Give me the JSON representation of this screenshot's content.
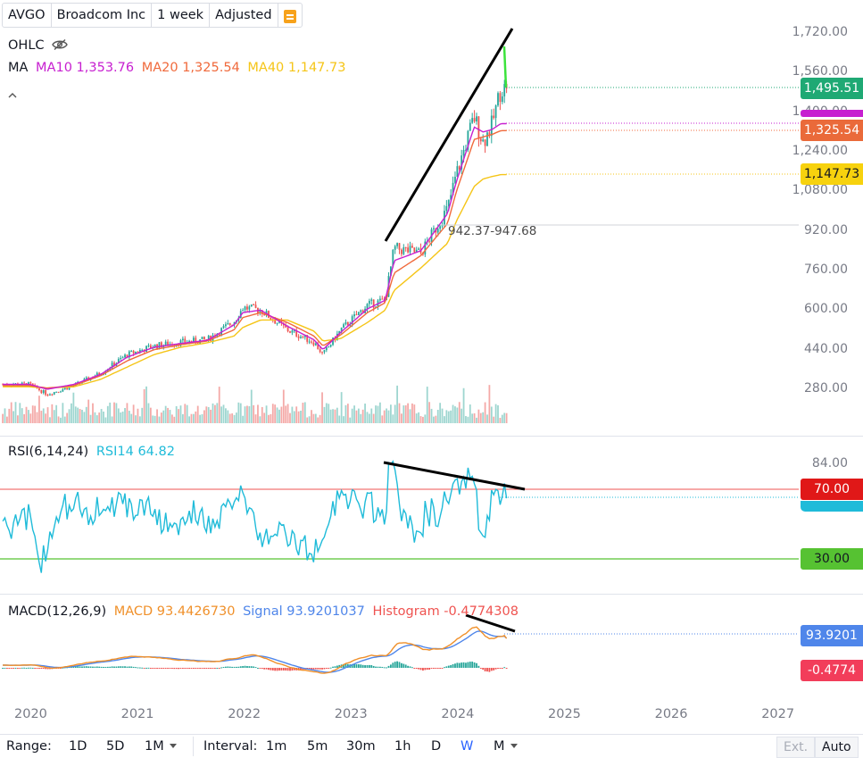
{
  "header": {
    "symbol": "AVGO",
    "name": "Broadcom Inc",
    "interval": "1 week",
    "adjustment": "Adjusted"
  },
  "legend": {
    "ohlc_label": "OHLC",
    "ma_label": "MA",
    "ma10": "MA10 1,353.76",
    "ma20": "MA20 1,325.54",
    "ma40": "MA40 1,147.73"
  },
  "rsi_legend": {
    "label": "RSI(6,14,24)",
    "value": "RSI14 64.82"
  },
  "macd_legend": {
    "label": "MACD(12,26,9)",
    "macd": "MACD 93.4426730",
    "signal": "Signal 93.9201037",
    "histogram": "Histogram -0.4774308"
  },
  "annotation": "942.37-947.68",
  "price_tags": {
    "last": "1,495.51",
    "ma20": "1,325.54",
    "ma40": "1,147.73",
    "rsi70": "70.00",
    "rsi30": "30.00",
    "signal": "93.9201",
    "histogram": "-0.4774"
  },
  "colors": {
    "up": "#26a69a",
    "down": "#ef5350",
    "ma10": "#c71fd0",
    "ma20": "#f06a3c",
    "ma40": "#f5c518",
    "rsi": "#1fbbd9",
    "macd": "#f0902a",
    "signal": "#4f86ea",
    "last_tag": "#1fa974",
    "ma20_tag": "#ea6a3a",
    "ma40_tag": "#f7d20e",
    "rsi70_tag": "#e01818",
    "rsi30_tag": "#56c232",
    "signal_tag": "#4f86ea",
    "hist_tag": "#f23d5a"
  },
  "chart_data": [
    {
      "type": "candlestick",
      "title": "AVGO Broadcom Inc 1 week",
      "y_axis_ticks": [
        "1,720.00",
        "1,560.00",
        "1,400.00",
        "1,240.00",
        "1,080.00",
        "920.00",
        "760.00",
        "600.00",
        "440.00",
        "280.00"
      ],
      "x_axis_ticks": [
        "2020",
        "2021",
        "2022",
        "2023",
        "2024",
        "2025",
        "2026",
        "2027"
      ],
      "ylim": [
        120,
        1760
      ],
      "last_close": 1495.51,
      "series": [
        {
          "name": "Close",
          "x": [
            "2020-01",
            "2020-03",
            "2020-06",
            "2020-09",
            "2020-12",
            "2021-03",
            "2021-06",
            "2021-09",
            "2021-12",
            "2022-01",
            "2022-03",
            "2022-06",
            "2022-09",
            "2022-10",
            "2022-12",
            "2023-03",
            "2023-05",
            "2023-06",
            "2023-09",
            "2023-12",
            "2024-01",
            "2024-03",
            "2024-04",
            "2024-05",
            "2024-06"
          ],
          "values": [
            300,
            260,
            295,
            345,
            420,
            455,
            470,
            480,
            555,
            610,
            600,
            520,
            470,
            420,
            520,
            620,
            640,
            850,
            830,
            1010,
            1150,
            1380,
            1280,
            1350,
            1495.51
          ]
        },
        {
          "name": "MA10",
          "values": [
            300,
            280,
            300,
            340,
            410,
            450,
            465,
            478,
            540,
            590,
            600,
            535,
            480,
            440,
            510,
            605,
            640,
            800,
            840,
            990,
            1120,
            1340,
            1320,
            1330,
            1353.76
          ]
        },
        {
          "name": "MA20",
          "values": [
            295,
            285,
            295,
            335,
            395,
            440,
            460,
            475,
            520,
            570,
            590,
            550,
            495,
            455,
            500,
            590,
            630,
            750,
            820,
            950,
            1080,
            1290,
            1300,
            1310,
            1325.54
          ]
        },
        {
          "name": "MA40",
          "values": [
            290,
            285,
            290,
            320,
            370,
            420,
            450,
            468,
            495,
            530,
            560,
            560,
            515,
            475,
            485,
            550,
            600,
            680,
            770,
            870,
            960,
            1100,
            1130,
            1140,
            1147.73
          ]
        }
      ]
    },
    {
      "type": "line",
      "title": "RSI(6,14,24)",
      "y_axis_ticks": [
        "84.00",
        "70.00",
        "30.00"
      ],
      "reference_lines": [
        70,
        30
      ],
      "last_value": 64.82
    },
    {
      "type": "line",
      "title": "MACD(12,26,9)",
      "macd": 93.442673,
      "signal": 93.9201037,
      "histogram": -0.4774308
    }
  ],
  "bottom": {
    "range_label": "Range:",
    "ranges": [
      "1D",
      "5D",
      "1M"
    ],
    "interval_label": "Interval:",
    "intervals": [
      "1m",
      "5m",
      "30m",
      "1h",
      "D",
      "W",
      "M"
    ],
    "ext": "Ext.",
    "auto": "Auto"
  }
}
